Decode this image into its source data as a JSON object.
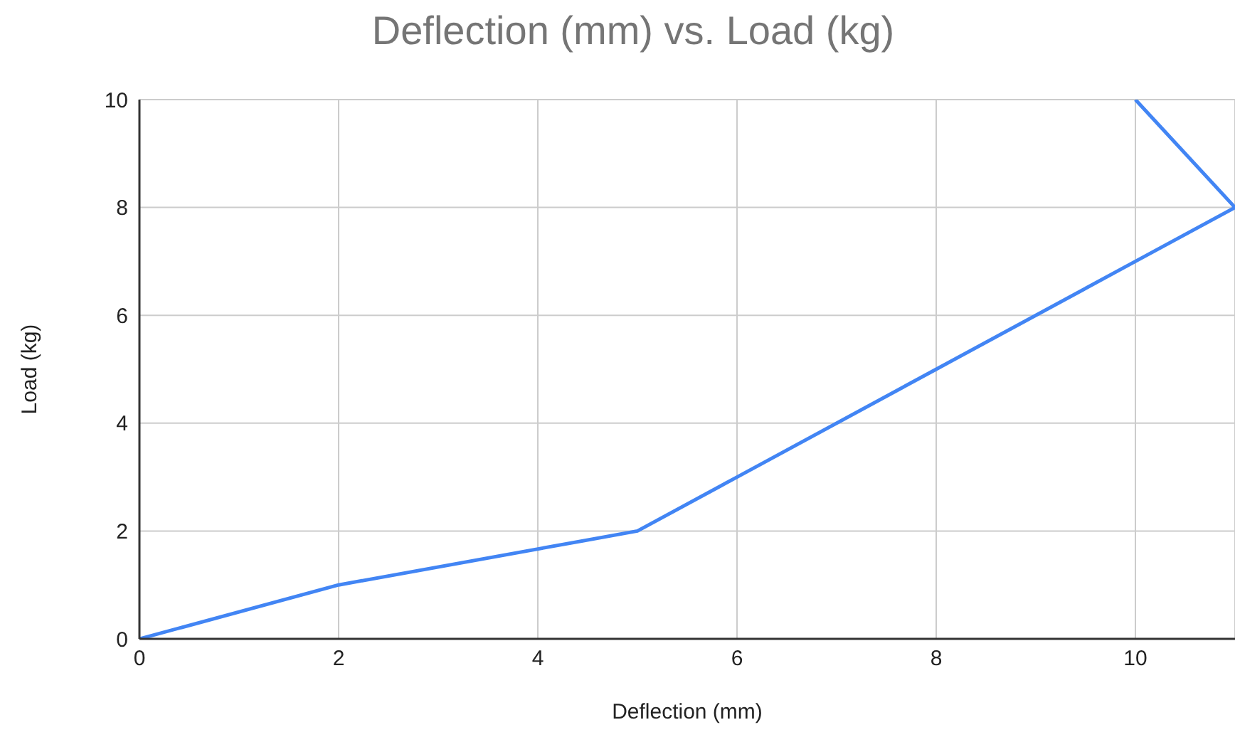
{
  "chart_data": {
    "type": "line",
    "title": "Deflection (mm) vs. Load (kg)",
    "xlabel": "Deflection (mm)",
    "ylabel": "Load (kg)",
    "x": [
      0,
      2,
      5,
      6,
      8,
      10,
      11,
      10
    ],
    "series": [
      {
        "color": "#4285f4",
        "values": [
          0,
          1,
          2,
          3,
          5,
          7,
          8,
          10
        ]
      }
    ],
    "xlim": [
      0,
      11
    ],
    "xticks": [
      0,
      2,
      4,
      6,
      8,
      10
    ],
    "ylim": [
      0,
      10
    ],
    "yticks": [
      0,
      2,
      4,
      6,
      8,
      10
    ],
    "grid": true,
    "marker": "none",
    "line_style": "solid"
  }
}
